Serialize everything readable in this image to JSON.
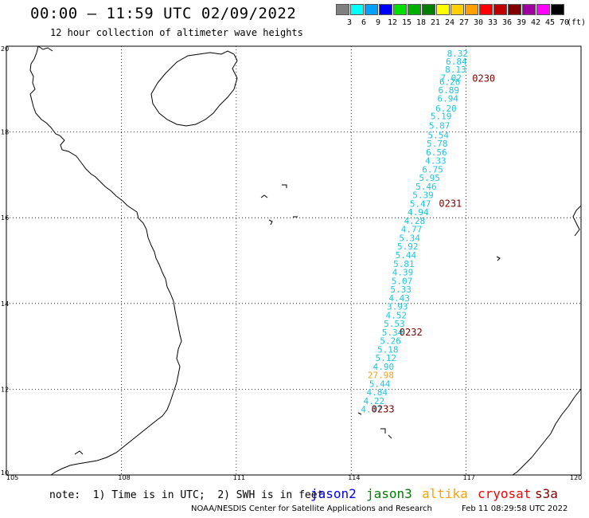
{
  "header": {
    "title": "00:00 — 11:59 UTC 02/09/2022",
    "subtitle": "12 hour collection of altimeter wave heights"
  },
  "colorbar": {
    "unit": "(ft)",
    "swatches": [
      {
        "color": "#808080",
        "label": "3"
      },
      {
        "color": "#00ffff",
        "label": "6"
      },
      {
        "color": "#00a0ff",
        "label": "9"
      },
      {
        "color": "#0000ff",
        "label": "12"
      },
      {
        "color": "#00e000",
        "label": "15"
      },
      {
        "color": "#00b000",
        "label": "18"
      },
      {
        "color": "#008000",
        "label": "21"
      },
      {
        "color": "#ffff00",
        "label": "24"
      },
      {
        "color": "#ffd000",
        "label": "27"
      },
      {
        "color": "#ffa000",
        "label": "30"
      },
      {
        "color": "#ff0000",
        "label": "33"
      },
      {
        "color": "#c00000",
        "label": "36"
      },
      {
        "color": "#800000",
        "label": "39"
      },
      {
        "color": "#a000a0",
        "label": "42"
      },
      {
        "color": "#ff00ff",
        "label": "45"
      },
      {
        "color": "#000000",
        "label": "70"
      }
    ]
  },
  "axes": {
    "lon_labels": [
      "105",
      "108",
      "111",
      "114",
      "117",
      "120"
    ],
    "lat_labels": [
      "20",
      "18",
      "16",
      "14",
      "12",
      "10"
    ],
    "lon_range": [
      105,
      120
    ],
    "lat_range": [
      10,
      20
    ]
  },
  "track": {
    "values": [
      {
        "lon": 116.75,
        "lat": 19.83,
        "text": "8.32"
      },
      {
        "lon": 116.72,
        "lat": 19.65,
        "text": "6.84"
      },
      {
        "lon": 116.7,
        "lat": 19.46,
        "text": "8.13"
      },
      {
        "lon": 116.58,
        "lat": 19.27,
        "text": "7.02"
      },
      {
        "lon": 116.55,
        "lat": 19.17,
        "text": "6.26"
      },
      {
        "lon": 116.52,
        "lat": 18.98,
        "text": "6.89"
      },
      {
        "lon": 116.5,
        "lat": 18.78,
        "text": "6.94"
      },
      {
        "lon": 116.45,
        "lat": 18.55,
        "text": "6.20"
      },
      {
        "lon": 116.32,
        "lat": 18.37,
        "text": "5.19"
      },
      {
        "lon": 116.28,
        "lat": 18.15,
        "text": "5.87"
      },
      {
        "lon": 116.25,
        "lat": 17.93,
        "text": "5.54"
      },
      {
        "lon": 116.22,
        "lat": 17.73,
        "text": "5.78"
      },
      {
        "lon": 116.2,
        "lat": 17.53,
        "text": "6.56"
      },
      {
        "lon": 116.18,
        "lat": 17.33,
        "text": "4.33"
      },
      {
        "lon": 116.1,
        "lat": 17.13,
        "text": "6.75"
      },
      {
        "lon": 116.02,
        "lat": 16.93,
        "text": "5.95"
      },
      {
        "lon": 115.93,
        "lat": 16.73,
        "text": "5.46"
      },
      {
        "lon": 115.85,
        "lat": 16.53,
        "text": "5.39"
      },
      {
        "lon": 115.78,
        "lat": 16.33,
        "text": "5.47"
      },
      {
        "lon": 115.72,
        "lat": 16.13,
        "text": "4.94"
      },
      {
        "lon": 115.63,
        "lat": 15.93,
        "text": "4.28"
      },
      {
        "lon": 115.55,
        "lat": 15.73,
        "text": "4.77"
      },
      {
        "lon": 115.5,
        "lat": 15.53,
        "text": "5.34"
      },
      {
        "lon": 115.45,
        "lat": 15.33,
        "text": "5.92"
      },
      {
        "lon": 115.4,
        "lat": 15.13,
        "text": "5.44"
      },
      {
        "lon": 115.35,
        "lat": 14.93,
        "text": "5.81"
      },
      {
        "lon": 115.32,
        "lat": 14.73,
        "text": "4.39"
      },
      {
        "lon": 115.3,
        "lat": 14.53,
        "text": "5.07"
      },
      {
        "lon": 115.27,
        "lat": 14.33,
        "text": "5.33"
      },
      {
        "lon": 115.23,
        "lat": 14.13,
        "text": "4.43"
      },
      {
        "lon": 115.18,
        "lat": 13.93,
        "text": "3.93"
      },
      {
        "lon": 115.15,
        "lat": 13.73,
        "text": "4.52"
      },
      {
        "lon": 115.1,
        "lat": 13.53,
        "text": "5.53"
      },
      {
        "lon": 115.05,
        "lat": 13.33,
        "text": "5.34"
      },
      {
        "lon": 115.0,
        "lat": 13.13,
        "text": "5.26"
      },
      {
        "lon": 114.93,
        "lat": 12.93,
        "text": "5.18"
      },
      {
        "lon": 114.88,
        "lat": 12.73,
        "text": "5.12"
      },
      {
        "lon": 114.82,
        "lat": 12.53,
        "text": "4.90"
      },
      {
        "lon": 114.68,
        "lat": 12.33,
        "text": "27.98"
      },
      {
        "lon": 114.72,
        "lat": 12.13,
        "text": "5.44"
      },
      {
        "lon": 114.65,
        "lat": 11.93,
        "text": "4.84"
      },
      {
        "lon": 114.57,
        "lat": 11.73,
        "text": "4.22"
      },
      {
        "lon": 114.5,
        "lat": 11.53,
        "text": "4.47"
      }
    ],
    "highlight_value": "27.98",
    "passes": [
      {
        "lon": 117.45,
        "lat": 19.25,
        "text": "0230"
      },
      {
        "lon": 116.58,
        "lat": 16.33,
        "text": "0231"
      },
      {
        "lon": 115.55,
        "lat": 13.33,
        "text": "0232"
      },
      {
        "lon": 114.82,
        "lat": 11.53,
        "text": "0233"
      }
    ]
  },
  "footer": {
    "note": "note:  1) Time is in UTC;  2) SWH is in feet",
    "legend": [
      {
        "label": "jason2",
        "color": "#0000ff"
      },
      {
        "label": "jason3",
        "color": "#008000"
      },
      {
        "label": "altika",
        "color": "#ffa000"
      },
      {
        "label": "cryosat",
        "color": "#ff0000"
      },
      {
        "label": "s3a",
        "color": "#800000"
      }
    ],
    "credit": "NOAA/NESDIS Center for Satellite Applications and Research",
    "timestamp": "Feb 11 08:29:58 UTC 2022"
  }
}
